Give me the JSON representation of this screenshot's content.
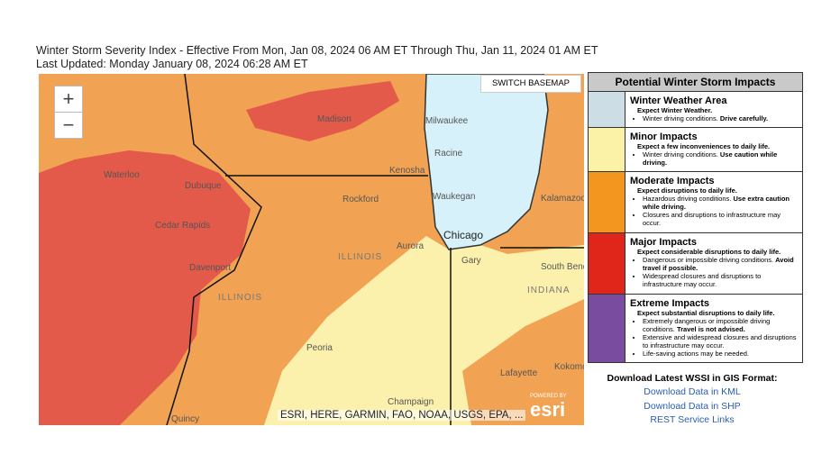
{
  "header": {
    "title": "Winter Storm Severity Index - Effective From Mon, Jan 08, 2024 06 AM ET Through Thu, Jan 11, 2024 01 AM ET",
    "updated": "Last Updated: Monday January 08, 2024 06:28 AM ET"
  },
  "map": {
    "zoom_in": "+",
    "zoom_out": "−",
    "basemap_button": "SWITCH BASEMAP",
    "attribution": "ESRI, HERE, GARMIN, FAO, NOAA, USGS, EPA, ...",
    "powered_by": "POWERED BY",
    "logo": "esri",
    "labels": [
      "Madison",
      "Milwaukee",
      "Racine",
      "Kenosha",
      "Waterloo",
      "Dubuque",
      "Rockford",
      "Waukegan",
      "Chicago",
      "Cedar Rapids",
      "Davenport",
      "ILLINOIS",
      "ILLINOIS",
      "Aurora",
      "Gary",
      "Kalamazoo",
      "South Bend",
      "INDIANA",
      "Peoria",
      "Lafayette",
      "Kokomo",
      "Champaign",
      "Quincy"
    ]
  },
  "legend": {
    "title": "Potential Winter Storm Impacts",
    "rows": [
      {
        "name": "Winter Weather Area",
        "summary": "Expect Winter Weather.",
        "bullets": [
          {
            "text": "Winter driving conditions.",
            "bold": "Drive carefully."
          }
        ]
      },
      {
        "name": "Minor Impacts",
        "summary": "Expect a few inconveniences to daily life.",
        "bullets": [
          {
            "text": "Winter driving conditions.",
            "bold": "Use caution while driving."
          }
        ]
      },
      {
        "name": "Moderate Impacts",
        "summary": "Expect disruptions to daily life.",
        "bullets": [
          {
            "text": "Hazardous driving conditions.",
            "bold": "Use extra caution while driving."
          },
          {
            "text": "Closures and disruptions to infrastructure may occur."
          }
        ]
      },
      {
        "name": "Major Impacts",
        "summary": "Expect considerable disruptions to daily life.",
        "bullets": [
          {
            "text": "Dangerous or impossible driving conditions.",
            "bold": "Avoid travel if possible."
          },
          {
            "text": "Widespread closures and disruptions to infrastructure may occur."
          }
        ]
      },
      {
        "name": "Extreme Impacts",
        "summary": "Expect substantial disruptions to daily life.",
        "bullets": [
          {
            "text": "Extremely dangerous or impossible driving conditions.",
            "bold": "Travel is not advised."
          },
          {
            "text": "Extensive and widespread closures and disruptions to infrastructure may occur."
          },
          {
            "text": "Life-saving actions may be needed."
          }
        ]
      }
    ]
  },
  "downloads": {
    "title": "Download Latest WSSI in GIS Format:",
    "links": [
      "Download Data in KML",
      "Download Data in SHP",
      "REST Service Links"
    ]
  }
}
